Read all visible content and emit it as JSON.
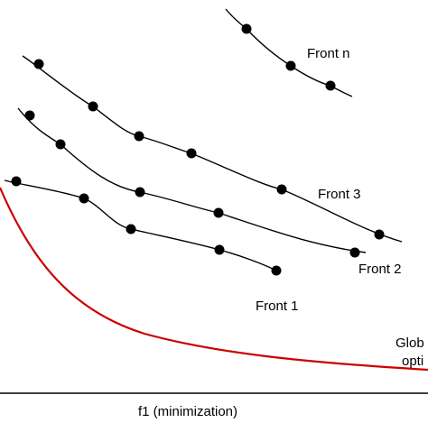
{
  "labels": {
    "front_n": "Front n",
    "front_3": "Front 3",
    "front_2": "Front 2",
    "front_1": "Front 1",
    "global_line1": "Glob",
    "global_line2": "opti",
    "x_axis": "f1 (minimization)"
  },
  "colors": {
    "front_line": "#000000",
    "point": "#000000",
    "optimal_curve": "#cc0000",
    "axis": "#000000"
  }
}
